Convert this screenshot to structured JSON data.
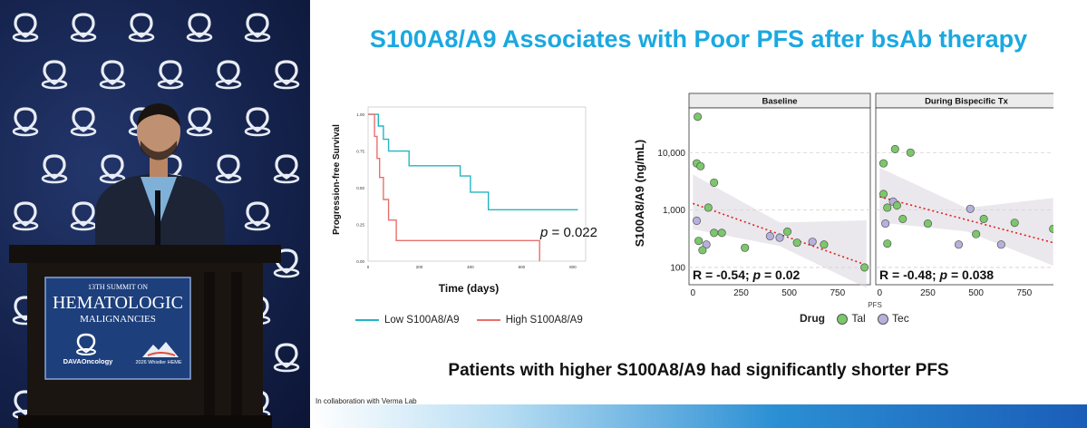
{
  "stage": {
    "sign": {
      "line1": "13TH SUMMIT ON",
      "line2": "HEMATOLOGIC",
      "line3": "MALIGNANCIES",
      "brand": "DAVAOncology",
      "badge": "2026 Whistler HEME"
    }
  },
  "slide": {
    "title": "S100A8/A9 Associates with Poor PFS after bsAb therapy",
    "conclusion": "Patients with higher S100A8/A9 had significantly shorter PFS",
    "credit": "In collaboration with Verma Lab"
  },
  "colors": {
    "title": "#1ba8e0",
    "low": "#22b5c4",
    "high": "#e8706d",
    "tal": "#7bc86a",
    "tec": "#b6b1dc",
    "trend": "#e02020"
  },
  "chart_data": [
    {
      "type": "line",
      "subtype": "kaplan-meier",
      "title": "",
      "xlabel": "Time (days)",
      "ylabel": "Progression-free Survival",
      "xlim": [
        0,
        850
      ],
      "ylim": [
        0,
        1.05
      ],
      "xticks": [
        "0",
        "200",
        "400",
        "600",
        "800"
      ],
      "yticks": [
        "0.00",
        "0.25",
        "0.50",
        "0.75",
        "1.00"
      ],
      "annotation": {
        "prefix": "p",
        "text": " = 0.022"
      },
      "series": [
        {
          "name": "Low S100A8/A9",
          "color": "#22b5c4",
          "steps": [
            [
              0,
              1.0
            ],
            [
              40,
              1.0
            ],
            [
              40,
              0.92
            ],
            [
              60,
              0.92
            ],
            [
              60,
              0.83
            ],
            [
              80,
              0.83
            ],
            [
              80,
              0.75
            ],
            [
              160,
              0.75
            ],
            [
              160,
              0.65
            ],
            [
              360,
              0.65
            ],
            [
              360,
              0.58
            ],
            [
              400,
              0.58
            ],
            [
              400,
              0.47
            ],
            [
              470,
              0.47
            ],
            [
              470,
              0.35
            ],
            [
              820,
              0.35
            ]
          ]
        },
        {
          "name": "High S100A8/A9",
          "color": "#e8706d",
          "steps": [
            [
              0,
              1.0
            ],
            [
              25,
              1.0
            ],
            [
              25,
              0.85
            ],
            [
              35,
              0.85
            ],
            [
              35,
              0.7
            ],
            [
              45,
              0.7
            ],
            [
              45,
              0.57
            ],
            [
              60,
              0.57
            ],
            [
              60,
              0.42
            ],
            [
              80,
              0.42
            ],
            [
              80,
              0.28
            ],
            [
              110,
              0.28
            ],
            [
              110,
              0.14
            ],
            [
              670,
              0.14
            ],
            [
              670,
              0.0
            ]
          ]
        }
      ]
    },
    {
      "type": "scatter",
      "ylabel": "S100A8/A9 (ng/mL)",
      "xlabel": "PFS",
      "yscale": "log",
      "ylim": [
        50,
        60000
      ],
      "xlim": [
        -20,
        920
      ],
      "yticks": [
        "100",
        "1,000",
        "10,000"
      ],
      "xticks": [
        "0",
        "250",
        "500",
        "750"
      ],
      "legend": {
        "title": "Drug",
        "items": [
          "Tal",
          "Tec"
        ]
      },
      "panels": [
        {
          "name": "Baseline",
          "stat": {
            "r": "R = -0.54; ",
            "p_prefix": "p",
            "p_text": " = 0.02"
          },
          "trend": [
            [
              0,
              1300
            ],
            [
              900,
              110
            ]
          ],
          "points": [
            {
              "x": 25,
              "y": 42000,
              "drug": "Tal"
            },
            {
              "x": 20,
              "y": 6500,
              "drug": "Tal"
            },
            {
              "x": 40,
              "y": 5800,
              "drug": "Tal"
            },
            {
              "x": 110,
              "y": 3000,
              "drug": "Tal"
            },
            {
              "x": 80,
              "y": 1100,
              "drug": "Tal"
            },
            {
              "x": 20,
              "y": 650,
              "drug": "Tec"
            },
            {
              "x": 110,
              "y": 400,
              "drug": "Tal"
            },
            {
              "x": 150,
              "y": 400,
              "drug": "Tal"
            },
            {
              "x": 30,
              "y": 290,
              "drug": "Tal"
            },
            {
              "x": 70,
              "y": 250,
              "drug": "Tec"
            },
            {
              "x": 50,
              "y": 200,
              "drug": "Tal"
            },
            {
              "x": 270,
              "y": 220,
              "drug": "Tal"
            },
            {
              "x": 400,
              "y": 350,
              "drug": "Tec"
            },
            {
              "x": 450,
              "y": 330,
              "drug": "Tec"
            },
            {
              "x": 490,
              "y": 420,
              "drug": "Tal"
            },
            {
              "x": 540,
              "y": 270,
              "drug": "Tal"
            },
            {
              "x": 620,
              "y": 280,
              "drug": "Tec"
            },
            {
              "x": 680,
              "y": 250,
              "drug": "Tal"
            },
            {
              "x": 890,
              "y": 100,
              "drug": "Tal"
            }
          ]
        },
        {
          "name": "During Bispecific Tx",
          "stat": {
            "r": "R = -0.48; ",
            "p_prefix": "p",
            "p_text": " = 0.038"
          },
          "trend": [
            [
              0,
              1700
            ],
            [
              900,
              270
            ]
          ],
          "points": [
            {
              "x": 20,
              "y": 6500,
              "drug": "Tal"
            },
            {
              "x": 80,
              "y": 11500,
              "drug": "Tal"
            },
            {
              "x": 160,
              "y": 10000,
              "drug": "Tal"
            },
            {
              "x": 20,
              "y": 1900,
              "drug": "Tal"
            },
            {
              "x": 70,
              "y": 1400,
              "drug": "Tec"
            },
            {
              "x": 40,
              "y": 1100,
              "drug": "Tal"
            },
            {
              "x": 90,
              "y": 1200,
              "drug": "Tal"
            },
            {
              "x": 120,
              "y": 700,
              "drug": "Tal"
            },
            {
              "x": 30,
              "y": 580,
              "drug": "Tec"
            },
            {
              "x": 250,
              "y": 580,
              "drug": "Tal"
            },
            {
              "x": 40,
              "y": 260,
              "drug": "Tal"
            },
            {
              "x": 410,
              "y": 250,
              "drug": "Tec"
            },
            {
              "x": 470,
              "y": 1050,
              "drug": "Tec"
            },
            {
              "x": 500,
              "y": 380,
              "drug": "Tal"
            },
            {
              "x": 540,
              "y": 700,
              "drug": "Tal"
            },
            {
              "x": 630,
              "y": 250,
              "drug": "Tec"
            },
            {
              "x": 700,
              "y": 600,
              "drug": "Tal"
            },
            {
              "x": 900,
              "y": 470,
              "drug": "Tal"
            }
          ]
        }
      ]
    }
  ]
}
